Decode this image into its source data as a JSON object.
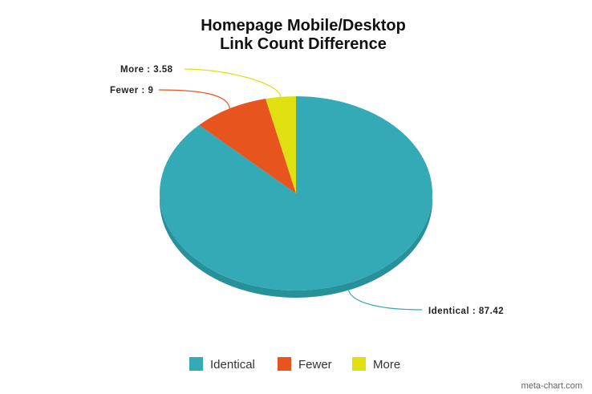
{
  "chart_data": {
    "type": "pie",
    "title_lines": [
      "Homepage Mobile/Desktop",
      "Link Count Difference"
    ],
    "slices": [
      {
        "label": "Identical",
        "value": 87.42,
        "color": "#33aab5",
        "side_color": "#27919a"
      },
      {
        "label": "Fewer",
        "value": 9,
        "color": "#e8541e",
        "side_color": "#c44416"
      },
      {
        "label": "More",
        "value": 3.58,
        "color": "#dee010",
        "side_color": "#bcbd0c"
      }
    ],
    "data_labels": [
      "Identical : 87.42",
      "Fewer : 9",
      "More : 3.58"
    ],
    "legend": [
      "Identical",
      "Fewer",
      "More"
    ],
    "legend_placement": "bottom-center",
    "credit": "meta-chart.com"
  }
}
